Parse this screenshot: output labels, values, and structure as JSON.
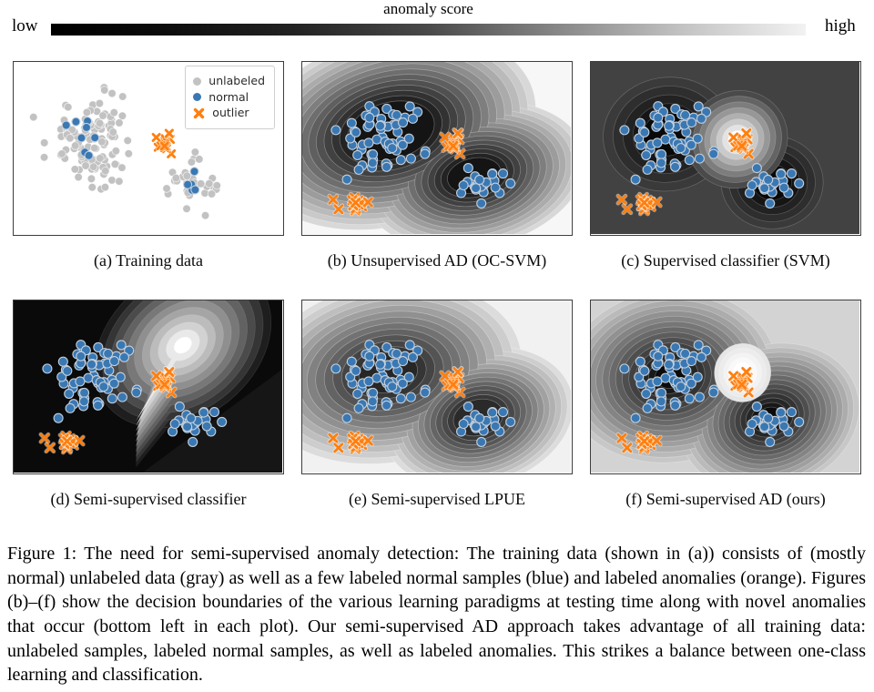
{
  "colorbar": {
    "title": "anomaly score",
    "low": "low",
    "high": "high",
    "gradient_from": "#000000",
    "gradient_to": "#ffffff"
  },
  "legend": {
    "items": [
      {
        "label": "unlabeled",
        "marker": "circle",
        "color": "#c2c2c2"
      },
      {
        "label": "normal",
        "marker": "circle",
        "color": "#3a78b3"
      },
      {
        "label": "outlier",
        "marker": "x",
        "color": "#ff7f0e"
      }
    ]
  },
  "figure_caption": "Figure 1: The need for semi-supervised anomaly detection: The training data (shown in (a)) consists of (mostly normal) unlabeled data (gray) as well as a few labeled normal samples (blue) and labeled anomalies (orange). Figures (b)–(f) show the decision boundaries of the various learning paradigms at testing time along with novel anomalies that occur (bottom left in each plot). Our semi-supervised AD approach takes advantage of all training data: unlabeled samples, labeled normal samples, as well as labeled anomalies. This strikes a balance between one-class learning and classification.",
  "chart_data": {
    "type": "scatter",
    "marker_colors": {
      "unlabeled": "#c2c2c2",
      "normal": "#3a78b3",
      "normal_edge": "#c3cfdb",
      "outlier": "#ff7f0e",
      "outlier_edge": "rgba(255,255,255,0.5)",
      "unlabeled_edge": "rgba(255,255,255,0.7)"
    },
    "clusters": {
      "train_unlabeled_1": {
        "n": 120,
        "cx": 0.29,
        "cy": 0.45,
        "sdx": 0.075,
        "sdy": 0.13
      },
      "train_unlabeled_2": {
        "n": 34,
        "cx": 0.67,
        "cy": 0.7,
        "sdx": 0.055,
        "sdy": 0.055
      },
      "train_normal_1": {
        "n": 8,
        "cx": 0.275,
        "cy": 0.44,
        "sdx": 0.045,
        "sdy": 0.07
      },
      "train_normal_2": {
        "n": 5,
        "cx": 0.66,
        "cy": 0.7,
        "sdx": 0.025,
        "sdy": 0.035
      },
      "labeled_outliers": {
        "n": 16,
        "cx": 0.565,
        "cy": 0.47,
        "sdx": 0.02,
        "sdy": 0.033
      },
      "test_normal_1": {
        "n": 60,
        "cx": 0.3,
        "cy": 0.44,
        "sdx": 0.07,
        "sdy": 0.105
      },
      "test_normal_2": {
        "n": 24,
        "cx": 0.675,
        "cy": 0.7,
        "sdx": 0.048,
        "sdy": 0.05
      },
      "test_outliers_clump": {
        "n": 13,
        "cx": 0.2,
        "cy": 0.825,
        "sdx": 0.012,
        "sdy": 0.022
      },
      "test_outliers_extra": {
        "points": [
          [
            0.115,
            0.8
          ],
          [
            0.135,
            0.856
          ],
          [
            0.245,
            0.815
          ]
        ]
      }
    },
    "panels": [
      {
        "id": "a",
        "caption": "(a) Training data",
        "bg": "#ffffff",
        "has_legend": true,
        "blobs": [],
        "groups": [
          {
            "cluster": "train_unlabeled_1",
            "style": "unlabeled"
          },
          {
            "cluster": "train_unlabeled_2",
            "style": "unlabeled"
          },
          {
            "cluster": "train_normal_1",
            "style": "normal"
          },
          {
            "cluster": "train_normal_2",
            "style": "normal"
          },
          {
            "cluster": "labeled_outliers",
            "style": "outlier"
          }
        ]
      },
      {
        "id": "b",
        "caption": "(b) Unsupervised AD (OC-SVM)",
        "bg": "#f7f7f7",
        "ring": "rgba(255,255,255,0.32)",
        "blobs": [
          {
            "cx": 0.33,
            "cy": 0.4,
            "rx": 0.55,
            "ry": 0.55,
            "rot": -15,
            "n": 14,
            "from": "#d8d8d8",
            "to": "#141414",
            "min": 0.3
          },
          {
            "cx": 0.64,
            "cy": 0.66,
            "rx": 0.42,
            "ry": 0.42,
            "rot": -12,
            "n": 14,
            "from": "#d8d8d8",
            "to": "#141414",
            "min": 0.24
          }
        ],
        "groups": [
          {
            "cluster": "test_normal_1",
            "style": "normal"
          },
          {
            "cluster": "test_normal_2",
            "style": "normal"
          },
          {
            "cluster": "labeled_outliers",
            "style": "outlier"
          },
          {
            "cluster": "test_outliers_clump",
            "style": "outlier"
          },
          {
            "cluster": "test_outliers_extra",
            "style": "outlier"
          }
        ]
      },
      {
        "id": "c",
        "caption": "(c) Supervised classifier (SVM)",
        "bg": "#424242",
        "ring": "rgba(255,255,255,0.22)",
        "blobs": [
          {
            "cx": 0.285,
            "cy": 0.42,
            "rx": 0.24,
            "ry": 0.33,
            "rot": -10,
            "n": 5,
            "from": "#3a3a3a",
            "to": "#090909",
            "min": 0.38
          },
          {
            "cx": 0.675,
            "cy": 0.7,
            "rx": 0.19,
            "ry": 0.27,
            "rot": 0,
            "n": 5,
            "from": "#3a3a3a",
            "to": "#090909",
            "min": 0.38
          },
          {
            "cx": 0.545,
            "cy": 0.45,
            "rx": 0.19,
            "ry": 0.28,
            "rot": -30,
            "n": 8,
            "from": "#4a4a4a",
            "to": "#fdfdfd",
            "min": 0.18,
            "top": true
          }
        ],
        "groups": [
          {
            "cluster": "test_normal_1",
            "style": "normal"
          },
          {
            "cluster": "test_normal_2",
            "style": "normal"
          },
          {
            "cluster": "labeled_outliers",
            "style": "outlier"
          },
          {
            "cluster": "test_outliers_clump",
            "style": "outlier"
          },
          {
            "cluster": "test_outliers_extra",
            "style": "outlier"
          }
        ]
      },
      {
        "id": "d",
        "caption": "(d) Semi-supervised classifier",
        "bg": "#0a0a0a",
        "ring": "rgba(255,255,255,0.12)",
        "funnel": {
          "apex": [
            0.455,
            0.97
          ],
          "cx": 0.63,
          "cy": 0.26,
          "rx": 0.36,
          "ry": 0.42,
          "rot": -38,
          "n": 11,
          "from": "#1e1e1e",
          "to": "#ffffff",
          "min": 0.1,
          "w0": 0.16
        },
        "blobs": [],
        "groups": [
          {
            "cluster": "test_normal_1",
            "style": "normal"
          },
          {
            "cluster": "test_normal_2",
            "style": "normal"
          },
          {
            "cluster": "labeled_outliers",
            "style": "outlier"
          },
          {
            "cluster": "test_outliers_clump",
            "style": "outlier"
          },
          {
            "cluster": "test_outliers_extra",
            "style": "outlier"
          }
        ]
      },
      {
        "id": "e",
        "caption": "(e) Semi-supervised LPUE",
        "bg": "#f1f1f1",
        "ring": "rgba(255,255,255,0.35)",
        "blobs": [
          {
            "cx": 0.32,
            "cy": 0.42,
            "rx": 0.5,
            "ry": 0.52,
            "rot": -10,
            "n": 13,
            "from": "#dcdcdc",
            "to": "#262626",
            "min": 0.22
          },
          {
            "cx": 0.655,
            "cy": 0.68,
            "rx": 0.36,
            "ry": 0.4,
            "rot": -15,
            "n": 13,
            "from": "#dcdcdc",
            "to": "#2a2a2a",
            "min": 0.26
          }
        ],
        "groups": [
          {
            "cluster": "test_normal_1",
            "style": "normal"
          },
          {
            "cluster": "test_normal_2",
            "style": "normal"
          },
          {
            "cluster": "labeled_outliers",
            "style": "outlier"
          },
          {
            "cluster": "test_outliers_clump",
            "style": "outlier"
          },
          {
            "cluster": "test_outliers_extra",
            "style": "outlier"
          }
        ]
      },
      {
        "id": "f",
        "caption": "(f) Semi-supervised AD (ours)",
        "bg": "#d3d3d3",
        "ring": "rgba(255,255,255,0.30)",
        "blobs": [
          {
            "cx": 0.295,
            "cy": 0.44,
            "rx": 0.4,
            "ry": 0.5,
            "rot": -8,
            "n": 15,
            "from": "#c7c7c7",
            "to": "#0b0b0b",
            "min": 0.14
          },
          {
            "cx": 0.665,
            "cy": 0.68,
            "rx": 0.34,
            "ry": 0.42,
            "rot": -18,
            "n": 15,
            "from": "#c7c7c7",
            "to": "#0b0b0b",
            "min": 0.14
          },
          {
            "cx": 0.565,
            "cy": 0.42,
            "rx": 0.105,
            "ry": 0.17,
            "rot": 10,
            "n": 5,
            "from": "#e6e6e6",
            "to": "#ffffff",
            "min": 0.35,
            "top": true
          }
        ],
        "groups": [
          {
            "cluster": "test_normal_1",
            "style": "normal"
          },
          {
            "cluster": "test_normal_2",
            "style": "normal"
          },
          {
            "cluster": "labeled_outliers",
            "style": "outlier"
          },
          {
            "cluster": "test_outliers_clump",
            "style": "outlier"
          },
          {
            "cluster": "test_outliers_extra",
            "style": "outlier"
          }
        ]
      }
    ]
  }
}
